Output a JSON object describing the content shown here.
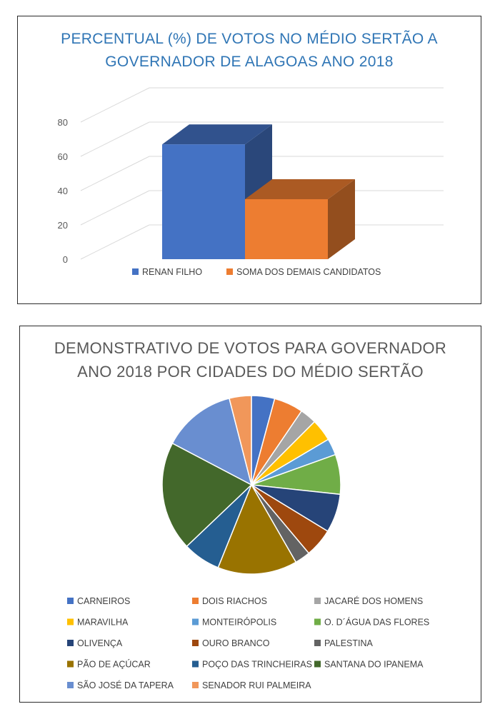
{
  "charts": [
    {
      "type": "bar",
      "title": "PERCENTUAL (%) DE VOTOS NO MÉDIO SERTÃO A GOVERNADOR DE ALAGOAS ANO 2018",
      "title_lines": [
        "PERCENTUAL (%) DE VOTOS NO MÉDIO SERTÃO A",
        "GOVERNADOR DE ALAGOAS ANO 2018"
      ],
      "ylim": [
        0,
        80
      ],
      "yticks": [
        "0",
        "20",
        "40",
        "60",
        "80"
      ],
      "grid": true,
      "legend_position": "bottom",
      "series": [
        {
          "name": "RENAN FILHO",
          "value": 67,
          "color": "#4472c4"
        },
        {
          "name": "SOMA DOS DEMAIS CANDIDATOS",
          "value": 35,
          "color": "#ed7d31"
        }
      ]
    },
    {
      "type": "pie",
      "title": "DEMONSTRATIVO DE VOTOS PARA GOVERNADOR ANO 2018 POR CIDADES DO MÉDIO SERTÃO",
      "title_lines": [
        "DEMONSTRATIVO DE VOTOS PARA GOVERNADOR",
        "ANO 2018 POR CIDADES DO MÉDIO SERTÃO"
      ],
      "legend_position": "bottom",
      "slices": [
        {
          "name": "CARNEIROS",
          "value": 4.2,
          "color": "#4472c4"
        },
        {
          "name": "DOIS RIACHOS",
          "value": 5.3,
          "color": "#ed7d31"
        },
        {
          "name": "JACARÉ DOS HOMENS",
          "value": 3.0,
          "color": "#a5a5a5"
        },
        {
          "name": "MARAVILHA",
          "value": 4.0,
          "color": "#ffc000"
        },
        {
          "name": "MONTEIRÓPOLIS",
          "value": 3.0,
          "color": "#5b9bd5"
        },
        {
          "name": "O. D´ÁGUA DAS FLORES",
          "value": 7.2,
          "color": "#70ad47"
        },
        {
          "name": "OLIVENÇA",
          "value": 7.0,
          "color": "#264478"
        },
        {
          "name": "OURO BRANCO",
          "value": 5.2,
          "color": "#9e480e"
        },
        {
          "name": "PALESTINA",
          "value": 2.8,
          "color": "#636363"
        },
        {
          "name": "PÃO DE AÇÚCAR",
          "value": 14.4,
          "color": "#997300"
        },
        {
          "name": "POÇO DAS TRINCHEIRAS",
          "value": 6.8,
          "color": "#255e91"
        },
        {
          "name": "SANTANA DO IPANEMA",
          "value": 19.8,
          "color": "#43682b"
        },
        {
          "name": "SÃO JOSÉ DA TAPERA",
          "value": 13.3,
          "color": "#698ed0"
        },
        {
          "name": "SENADOR RUI PALMEIRA",
          "value": 4.0,
          "color": "#f1975a"
        }
      ]
    }
  ]
}
